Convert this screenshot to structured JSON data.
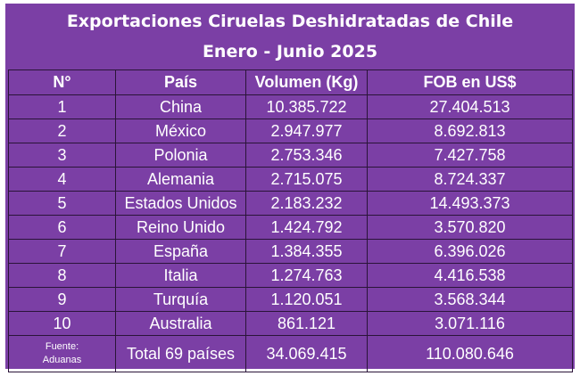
{
  "title": {
    "line1": "Exportaciones Ciruelas Deshidratadas de Chile",
    "line2": "Enero - Junio 2025"
  },
  "table": {
    "headers": [
      "N°",
      "País",
      "Volumen (Kg)",
      "FOB en US$"
    ],
    "rows": [
      {
        "n": "1",
        "country": "China",
        "volume": "10.385.722",
        "fob": "27.404.513"
      },
      {
        "n": "2",
        "country": "México",
        "volume": "2.947.977",
        "fob": "8.692.813"
      },
      {
        "n": "3",
        "country": "Polonia",
        "volume": "2.753.346",
        "fob": "7.427.758"
      },
      {
        "n": "4",
        "country": "Alemania",
        "volume": "2.715.075",
        "fob": "8.724.337"
      },
      {
        "n": "5",
        "country": "Estados Unidos",
        "volume": "2.183.232",
        "fob": "14.493.373"
      },
      {
        "n": "6",
        "country": "Reino Unido",
        "volume": "1.424.792",
        "fob": "3.570.820"
      },
      {
        "n": "7",
        "country": "España",
        "volume": "1.384.355",
        "fob": "6.396.026"
      },
      {
        "n": "8",
        "country": "Italia",
        "volume": "1.274.763",
        "fob": "4.416.538"
      },
      {
        "n": "9",
        "country": "Turquía",
        "volume": "1.120.051",
        "fob": "3.568.344"
      },
      {
        "n": "10",
        "country": "Australia",
        "volume": "861.121",
        "fob": "3.071.116"
      }
    ],
    "footer": {
      "source_label": "Fuente:",
      "source_name": "Aduanas",
      "total_label": "Total 69 países",
      "total_volume": "34.069.415",
      "total_fob": "110.080.646"
    }
  },
  "colors": {
    "background": "#7b3fa5",
    "text": "#ffffff",
    "border": "#2a1438"
  }
}
